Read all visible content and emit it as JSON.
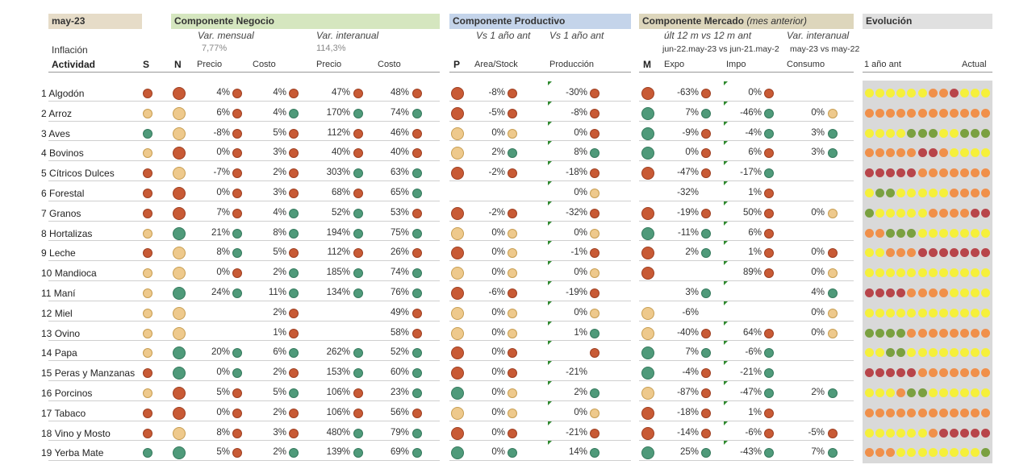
{
  "title": {
    "period": "may-23"
  },
  "sections": {
    "negocio": "Componente Negocio",
    "productivo": "Componente Productivo",
    "mercado": "Componente Mercado",
    "mercado_note": "(mes anterior)",
    "evolucion": "Evolución"
  },
  "subheaders": {
    "var_mensual": "Var. mensual",
    "var_interanual": "Var. interanual",
    "vs1a": "Vs 1 año ant",
    "vs1b": "Vs 1 año ant",
    "ult12": "últ 12 m vs 12 m ant",
    "var_interanual_m": "Var. interanual",
    "range1": "jun-22.may-23 vs jun-21.may-2",
    "range2": "may-23 vs may-22",
    "inflacion_label": "Inflación",
    "inflacion_mensual": "7,77%",
    "inflacion_interanual": "114,3%"
  },
  "columns": {
    "actividad": "Actividad",
    "s": "S",
    "n": "N",
    "precio1": "Precio",
    "costo1": "Costo",
    "precio2": "Precio",
    "costo2": "Costo",
    "p": "P",
    "area": "Area/Stock",
    "produccion": "Producción",
    "m": "M",
    "expo": "Expo",
    "impo": "Impo",
    "consumo": "Consumo",
    "evo_start": "1 año ant",
    "evo_end": "Actual"
  },
  "colors": {
    "red": "#c85a35",
    "green": "#4f9a7a",
    "yellow": "#eec98c"
  },
  "rows": [
    {
      "n": "1",
      "name": "Algodón",
      "S": "r",
      "N": "r",
      "pm": "4%",
      "pmc": "r",
      "cm": "4%",
      "cmc": "r",
      "pi": "47%",
      "pic": "r",
      "ci": "48%",
      "cic": "r",
      "P": "r",
      "area": "-8%",
      "ac": "r",
      "prod": "-30%",
      "prc": "r",
      "M": "r",
      "expo": "-63%",
      "ec": "r",
      "impo": "0%",
      "ic": "r",
      "cons": "",
      "cc": "",
      "evo": "yyyyyyooryyy"
    },
    {
      "n": "2",
      "name": "Arroz",
      "S": "y",
      "N": "y",
      "pm": "6%",
      "pmc": "r",
      "cm": "4%",
      "cmc": "g",
      "pi": "170%",
      "pic": "g",
      "ci": "74%",
      "cic": "g",
      "P": "r",
      "area": "-5%",
      "ac": "r",
      "prod": "-8%",
      "prc": "r",
      "M": "g",
      "expo": "7%",
      "ec": "g",
      "impo": "-46%",
      "ic": "g",
      "cons": "0%",
      "cc": "y",
      "evo": "oooooooooooo"
    },
    {
      "n": "3",
      "name": "Aves",
      "S": "g",
      "N": "y",
      "pm": "-8%",
      "pmc": "r",
      "cm": "5%",
      "cmc": "r",
      "pi": "112%",
      "pic": "r",
      "ci": "46%",
      "cic": "r",
      "P": "y",
      "area": "0%",
      "ac": "y",
      "prod": "0%",
      "prc": "r",
      "M": "g",
      "expo": "-9%",
      "ec": "r",
      "impo": "-4%",
      "ic": "g",
      "cons": "3%",
      "cc": "g",
      "evo": "yyyygggyyggg"
    },
    {
      "n": "4",
      "name": "Bovinos",
      "S": "y",
      "N": "r",
      "pm": "0%",
      "pmc": "r",
      "cm": "3%",
      "cmc": "r",
      "pi": "40%",
      "pic": "r",
      "ci": "40%",
      "cic": "r",
      "P": "y",
      "area": "2%",
      "ac": "g",
      "prod": "8%",
      "prc": "g",
      "M": "g",
      "expo": "0%",
      "ec": "r",
      "impo": "6%",
      "ic": "r",
      "cons": "3%",
      "cc": "g",
      "evo": "ooooorroyyyy"
    },
    {
      "n": "5",
      "name": "Cítricos Dulces",
      "S": "r",
      "N": "y",
      "pm": "-7%",
      "pmc": "r",
      "cm": "2%",
      "cmc": "r",
      "pi": "303%",
      "pic": "g",
      "ci": "63%",
      "cic": "g",
      "P": "r",
      "area": "-2%",
      "ac": "r",
      "prod": "-18%",
      "prc": "r",
      "M": "r",
      "expo": "-47%",
      "ec": "r",
      "impo": "-17%",
      "ic": "g",
      "cons": "",
      "cc": "",
      "evo": "rrrrrooooooo"
    },
    {
      "n": "6",
      "name": "Forestal",
      "S": "r",
      "N": "r",
      "pm": "0%",
      "pmc": "r",
      "cm": "3%",
      "cmc": "r",
      "pi": "68%",
      "pic": "r",
      "ci": "65%",
      "cic": "g",
      "P": "",
      "area": "",
      "ac": "",
      "prod": "0%",
      "prc": "y",
      "M": "",
      "expo": "-32%",
      "ec": "",
      "impo": "1%",
      "ic": "r",
      "cons": "",
      "cc": "",
      "evo": "yggyyyyyoooo"
    },
    {
      "n": "7",
      "name": "Granos",
      "S": "r",
      "N": "r",
      "pm": "7%",
      "pmc": "r",
      "cm": "4%",
      "cmc": "g",
      "pi": "52%",
      "pic": "g",
      "ci": "53%",
      "cic": "r",
      "P": "r",
      "area": "-2%",
      "ac": "r",
      "prod": "-32%",
      "prc": "r",
      "M": "r",
      "expo": "-19%",
      "ec": "r",
      "impo": "50%",
      "ic": "r",
      "cons": "0%",
      "cc": "y",
      "evo": "gyyyyyoooorr"
    },
    {
      "n": "8",
      "name": "Hortalizas",
      "S": "y",
      "N": "g",
      "pm": "21%",
      "pmc": "g",
      "cm": "8%",
      "cmc": "g",
      "pi": "194%",
      "pic": "g",
      "ci": "75%",
      "cic": "g",
      "P": "y",
      "area": "0%",
      "ac": "y",
      "prod": "0%",
      "prc": "y",
      "M": "g",
      "expo": "-11%",
      "ec": "g",
      "impo": "6%",
      "ic": "r",
      "cons": "",
      "cc": "",
      "evo": "oogggyyyyyyy"
    },
    {
      "n": "9",
      "name": "Leche",
      "S": "r",
      "N": "y",
      "pm": "8%",
      "pmc": "g",
      "cm": "5%",
      "cmc": "r",
      "pi": "112%",
      "pic": "r",
      "ci": "26%",
      "cic": "r",
      "P": "r",
      "area": "0%",
      "ac": "y",
      "prod": "-1%",
      "prc": "r",
      "M": "r",
      "expo": "2%",
      "ec": "g",
      "impo": "1%",
      "ic": "r",
      "cons": "0%",
      "cc": "r",
      "evo": "yyooorrrrrrr"
    },
    {
      "n": "10",
      "name": "Mandioca",
      "S": "y",
      "N": "y",
      "pm": "0%",
      "pmc": "r",
      "cm": "2%",
      "cmc": "g",
      "pi": "185%",
      "pic": "g",
      "ci": "74%",
      "cic": "g",
      "P": "y",
      "area": "0%",
      "ac": "y",
      "prod": "0%",
      "prc": "y",
      "M": "r",
      "expo": "",
      "ec": "",
      "impo": "89%",
      "ic": "r",
      "cons": "0%",
      "cc": "y",
      "evo": "yyyyyyyyyyyy"
    },
    {
      "n": "11",
      "name": "Maní",
      "S": "y",
      "N": "g",
      "pm": "24%",
      "pmc": "g",
      "cm": "11%",
      "cmc": "g",
      "pi": "134%",
      "pic": "g",
      "ci": "76%",
      "cic": "g",
      "P": "r",
      "area": "-6%",
      "ac": "r",
      "prod": "-19%",
      "prc": "r",
      "M": "",
      "expo": "3%",
      "ec": "g",
      "impo": "",
      "ic": "",
      "cons": "4%",
      "cc": "g",
      "evo": "rrrrooooyyyy"
    },
    {
      "n": "12",
      "name": "Miel",
      "S": "y",
      "N": "y",
      "pm": "",
      "pmc": "",
      "cm": "2%",
      "cmc": "r",
      "pi": "",
      "pic": "",
      "ci": "49%",
      "cic": "r",
      "P": "y",
      "area": "0%",
      "ac": "y",
      "prod": "0%",
      "prc": "y",
      "M": "y",
      "expo": "-6%",
      "ec": "",
      "impo": "",
      "ic": "",
      "cons": "0%",
      "cc": "y",
      "evo": "yyyyyyyyyyyy"
    },
    {
      "n": "13",
      "name": "Ovino",
      "S": "y",
      "N": "y",
      "pm": "",
      "pmc": "",
      "cm": "1%",
      "cmc": "r",
      "pi": "",
      "pic": "",
      "ci": "58%",
      "cic": "r",
      "P": "y",
      "area": "0%",
      "ac": "y",
      "prod": "1%",
      "prc": "g",
      "M": "y",
      "expo": "-40%",
      "ec": "r",
      "impo": "64%",
      "ic": "r",
      "cons": "0%",
      "cc": "y",
      "evo": "ggggoooooooo"
    },
    {
      "n": "14",
      "name": "Papa",
      "S": "y",
      "N": "g",
      "pm": "20%",
      "pmc": "g",
      "cm": "6%",
      "cmc": "g",
      "pi": "262%",
      "pic": "g",
      "ci": "52%",
      "cic": "g",
      "P": "r",
      "area": "0%",
      "ac": "r",
      "prod": "",
      "prc": "r",
      "M": "g",
      "expo": "7%",
      "ec": "g",
      "impo": "-6%",
      "ic": "g",
      "cons": "",
      "cc": "",
      "evo": "yyggyyyyyyyy"
    },
    {
      "n": "15",
      "name": "Peras y Manzanas",
      "S": "r",
      "N": "g",
      "pm": "0%",
      "pmc": "g",
      "cm": "2%",
      "cmc": "r",
      "pi": "153%",
      "pic": "g",
      "ci": "60%",
      "cic": "g",
      "P": "r",
      "area": "0%",
      "ac": "r",
      "prod": "-21%",
      "prc": "",
      "M": "g",
      "expo": "-4%",
      "ec": "r",
      "impo": "-21%",
      "ic": "g",
      "cons": "",
      "cc": "",
      "evo": "rrrrrooooooo"
    },
    {
      "n": "16",
      "name": "Porcinos",
      "S": "y",
      "N": "r",
      "pm": "5%",
      "pmc": "r",
      "cm": "5%",
      "cmc": "g",
      "pi": "106%",
      "pic": "r",
      "ci": "23%",
      "cic": "g",
      "P": "g",
      "area": "0%",
      "ac": "y",
      "prod": "2%",
      "prc": "g",
      "M": "y",
      "expo": "-87%",
      "ec": "r",
      "impo": "-47%",
      "ic": "g",
      "cons": "2%",
      "cc": "g",
      "evo": "yyyoggyyyyyy"
    },
    {
      "n": "17",
      "name": "Tabaco",
      "S": "r",
      "N": "r",
      "pm": "0%",
      "pmc": "r",
      "cm": "2%",
      "cmc": "r",
      "pi": "106%",
      "pic": "r",
      "ci": "56%",
      "cic": "r",
      "P": "y",
      "area": "0%",
      "ac": "y",
      "prod": "0%",
      "prc": "y",
      "M": "r",
      "expo": "-18%",
      "ec": "r",
      "impo": "1%",
      "ic": "r",
      "cons": "",
      "cc": "",
      "evo": "oooooooooooo"
    },
    {
      "n": "18",
      "name": "Vino y Mosto",
      "S": "r",
      "N": "y",
      "pm": "8%",
      "pmc": "r",
      "cm": "3%",
      "cmc": "r",
      "pi": "480%",
      "pic": "g",
      "ci": "79%",
      "cic": "g",
      "P": "r",
      "area": "0%",
      "ac": "r",
      "prod": "-21%",
      "prc": "r",
      "M": "r",
      "expo": "-14%",
      "ec": "r",
      "impo": "-6%",
      "ic": "r",
      "cons": "-5%",
      "cc": "r",
      "evo": "yyyyyyorrrrr"
    },
    {
      "n": "19",
      "name": "Yerba Mate",
      "S": "g",
      "N": "g",
      "pm": "5%",
      "pmc": "r",
      "cm": "2%",
      "cmc": "g",
      "pi": "139%",
      "pic": "g",
      "ci": "69%",
      "cic": "g",
      "P": "g",
      "area": "0%",
      "ac": "g",
      "prod": "14%",
      "prc": "g",
      "M": "g",
      "expo": "25%",
      "ec": "g",
      "impo": "-43%",
      "ic": "g",
      "cons": "7%",
      "cc": "g",
      "evo": "oooyyyyyyyyg"
    }
  ]
}
